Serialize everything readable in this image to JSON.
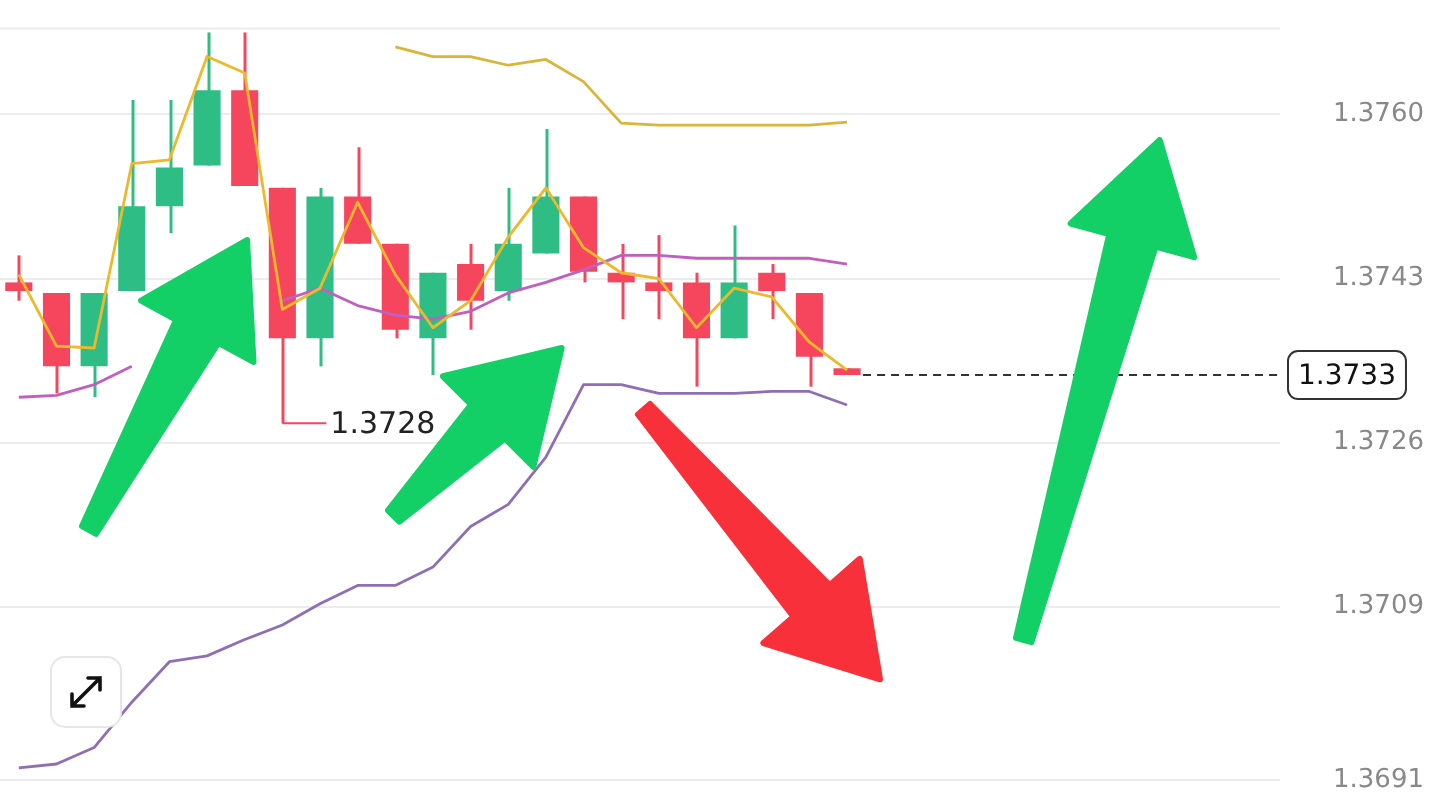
{
  "chart_data": {
    "type": "candlestick",
    "categories": [
      null,
      null,
      null,
      null,
      null,
      null,
      null,
      null,
      null,
      null,
      null,
      null,
      null,
      null,
      null,
      null,
      null,
      null,
      null,
      null,
      null,
      null,
      null,
      null,
      null,
      null,
      null,
      null,
      null,
      null,
      null,
      null,
      null,
      null
    ],
    "ohlc": [
      [
        1.37426,
        1.37454,
        1.37407,
        1.37417
      ],
      [
        1.37415,
        1.37415,
        1.37311,
        1.37339
      ],
      [
        1.37339,
        1.37415,
        1.37307,
        1.37415
      ],
      [
        1.37417,
        1.37615,
        1.37417,
        1.37505
      ],
      [
        1.37505,
        1.37615,
        1.37477,
        1.37545
      ],
      [
        1.37547,
        1.37685,
        1.37547,
        1.37625
      ],
      [
        1.37625,
        1.37685,
        1.37526,
        1.37526
      ],
      [
        1.37524,
        1.37524,
        1.3728,
        1.37368
      ],
      [
        1.37368,
        1.37524,
        1.37339,
        1.37515
      ],
      [
        1.37515,
        1.37566,
        1.37466,
        1.37466
      ],
      [
        1.37466,
        1.37466,
        1.37368,
        1.37377
      ],
      [
        1.37368,
        1.37436,
        1.3733,
        1.37436
      ],
      [
        1.37445,
        1.37466,
        1.37377,
        1.37407
      ],
      [
        1.37417,
        1.37524,
        1.37407,
        1.37466
      ],
      [
        1.37456,
        1.37585,
        1.37456,
        1.37515
      ],
      [
        1.37515,
        1.37515,
        1.37426,
        1.37437
      ],
      [
        1.37436,
        1.37466,
        1.37388,
        1.37426
      ],
      [
        1.37426,
        1.37475,
        1.37388,
        1.37417
      ],
      [
        1.37426,
        1.37436,
        1.37318,
        1.37368
      ],
      [
        1.37368,
        1.37485,
        1.37368,
        1.37426
      ],
      [
        1.37436,
        1.37445,
        1.37388,
        1.37417
      ],
      [
        1.37415,
        1.37415,
        1.37318,
        1.37349
      ],
      [
        1.37337,
        1.37337,
        1.3733,
        1.3733
      ],
      null,
      null,
      null,
      null,
      null,
      null,
      null,
      null,
      null,
      null,
      null
    ],
    "colors": [
      "#f6465d",
      "#f6465d",
      "#2ebd85",
      "#2ebd85",
      "#2ebd85",
      "#2ebd85",
      "#f6465d",
      "#f6465d",
      "#2ebd85",
      "#f6465d",
      "#f6465d",
      "#2ebd85",
      "#f6465d",
      "#2ebd85",
      "#2ebd85",
      "#f6465d",
      "#f6465d",
      "#f6465d",
      "#f6465d",
      "#2ebd85",
      "#f6465d",
      "#f6465d",
      "#f6465d",
      null,
      null,
      null,
      null,
      null,
      null,
      null,
      null,
      null,
      null,
      null
    ],
    "series": [
      {
        "type": "line",
        "color": "#ecb92c",
        "values": [
          1.37434,
          1.3736,
          1.37358,
          1.37549,
          1.37553,
          1.3766,
          1.37643,
          1.37398,
          1.3742,
          1.37509,
          1.37434,
          1.37379,
          1.37407,
          1.37473,
          1.37524,
          1.37462,
          1.37436,
          1.3743,
          1.37379,
          1.3742,
          1.37411,
          1.37364,
          1.37335,
          null,
          null,
          null,
          null,
          null,
          null,
          null,
          null,
          null,
          null,
          null
        ]
      },
      {
        "type": "line",
        "color": "#c05fc0",
        "values": [
          1.37307,
          1.37309,
          1.3732,
          1.37339,
          null,
          null,
          null,
          1.37407,
          1.3742,
          1.37402,
          1.37392,
          1.37388,
          1.37396,
          1.37415,
          1.37426,
          1.37439,
          1.37454,
          1.37454,
          1.37451,
          1.37451,
          1.37451,
          1.37451,
          1.37445,
          null,
          null,
          null,
          null,
          null,
          null,
          null,
          null,
          null,
          null,
          null
        ]
      },
      {
        "type": "line",
        "color": "#d9b53a",
        "values": [
          null,
          null,
          null,
          null,
          null,
          null,
          null,
          null,
          null,
          null,
          1.3767,
          1.3766,
          1.3766,
          1.37651,
          1.37657,
          1.37634,
          1.37591,
          1.37589,
          1.37589,
          1.37589,
          1.37589,
          1.37589,
          1.37592,
          null,
          null,
          null,
          null,
          null,
          null,
          null,
          null,
          null,
          null,
          null
        ]
      },
      {
        "type": "line",
        "color": "#8e6fb5",
        "values": [
          1.36923,
          1.36927,
          1.36944,
          1.36991,
          1.37033,
          1.37039,
          1.37056,
          1.37071,
          1.37093,
          1.37112,
          1.37112,
          1.37131,
          1.37173,
          1.37196,
          1.37245,
          1.3732,
          1.3732,
          1.37311,
          1.37311,
          1.37311,
          1.37313,
          1.37313,
          1.37299,
          null,
          null,
          null,
          null,
          null,
          null,
          null,
          null,
          null,
          null,
          null
        ]
      }
    ],
    "ylim": [
      1.3691,
      1.3769
    ],
    "yticks": [
      {
        "value": 1.376,
        "label": "1.3760"
      },
      1.3743,
      1.3726,
      1.3709,
      1.3691
    ],
    "grid": "y",
    "tick_labels": "y",
    "marker": "none",
    "ref_lines": [
      {
        "axis": "y",
        "value": 1.3733,
        "label": "1.3733",
        "color": "#333333",
        "line_style": "dashed"
      }
    ],
    "annotations": [
      "1.3728"
    ]
  }
}
